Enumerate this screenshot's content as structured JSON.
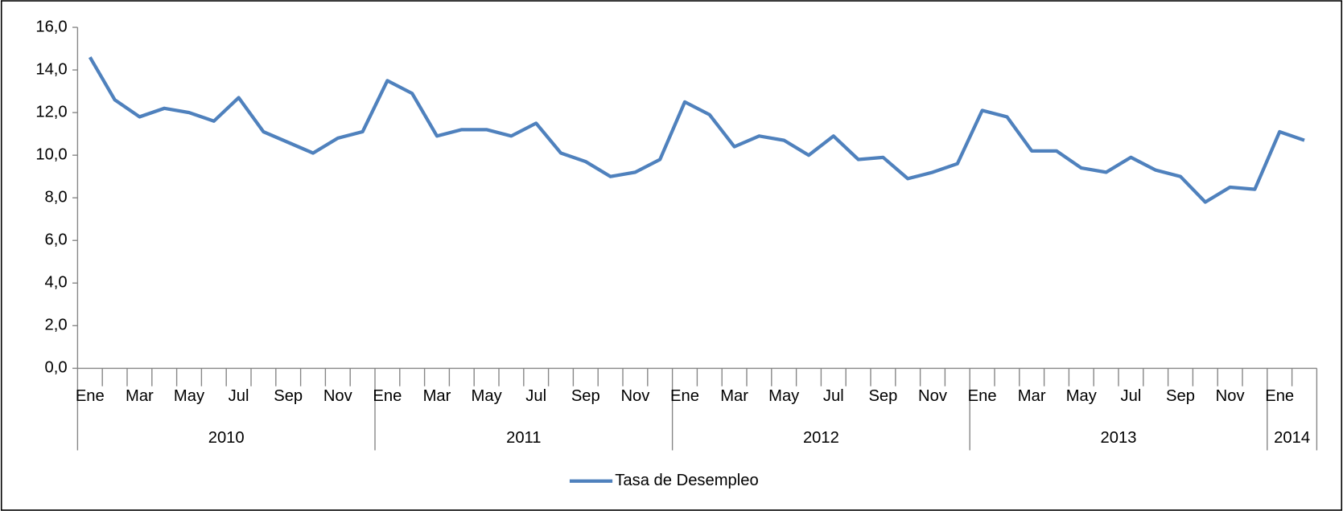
{
  "chart_data": {
    "type": "line",
    "categories": [
      "Ene",
      null,
      "Mar",
      null,
      "May",
      null,
      "Jul",
      null,
      "Sep",
      null,
      "Nov",
      null,
      "Ene",
      null,
      "Mar",
      null,
      "May",
      null,
      "Jul",
      null,
      "Sep",
      null,
      "Nov",
      null,
      "Ene",
      null,
      "Mar",
      null,
      "May",
      null,
      "Jul",
      null,
      "Sep",
      null,
      "Nov",
      null,
      "Ene",
      null,
      "Mar",
      null,
      "May",
      null,
      "Jul",
      null,
      "Sep",
      null,
      "Nov",
      null,
      "Ene",
      null
    ],
    "category_groups": [
      "2010",
      "2011",
      "2012",
      "2013",
      "2014"
    ],
    "series": [
      {
        "name": "Tasa de Desempleo",
        "color": "#4f81bd",
        "values": [
          14.6,
          12.6,
          11.8,
          12.2,
          12.0,
          11.6,
          12.7,
          11.1,
          10.6,
          10.1,
          10.8,
          11.1,
          13.5,
          12.9,
          10.9,
          11.2,
          11.2,
          10.9,
          11.5,
          10.1,
          9.7,
          9.0,
          9.2,
          9.8,
          12.5,
          11.9,
          10.4,
          10.9,
          10.7,
          10.0,
          10.9,
          9.8,
          9.9,
          8.9,
          9.2,
          9.6,
          12.1,
          11.8,
          10.2,
          10.2,
          9.4,
          9.2,
          9.9,
          9.3,
          9.0,
          7.8,
          8.5,
          8.4,
          11.1,
          10.7
        ]
      }
    ],
    "ylim": [
      0,
      16
    ],
    "yticks": [
      {
        "value": 0,
        "label": "0,0"
      },
      {
        "value": 2,
        "label": "2,0"
      },
      {
        "value": 4,
        "label": "4,0"
      },
      {
        "value": 6,
        "label": "6,0"
      },
      {
        "value": 8,
        "label": "8,0"
      },
      {
        "value": 10,
        "label": "10,0"
      },
      {
        "value": 12,
        "label": "12,0"
      },
      {
        "value": 14,
        "label": "14,0"
      },
      {
        "value": 16,
        "label": "16,0"
      }
    ],
    "grid": false,
    "legend": "bottom"
  }
}
